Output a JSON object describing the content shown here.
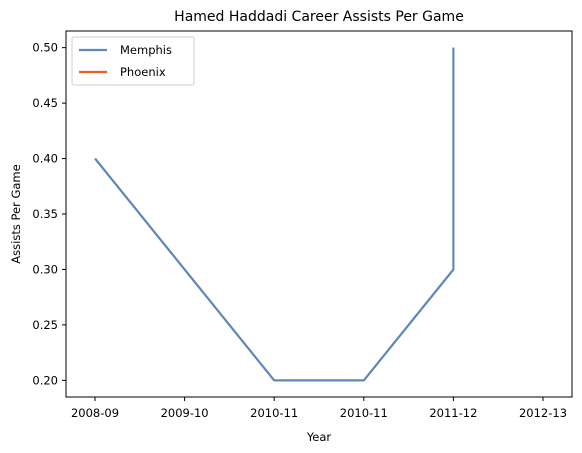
{
  "chart_data": {
    "type": "line",
    "title": "Hamed Haddadi Career Assists Per Game",
    "xlabel": "Year",
    "ylabel": "Assists Per Game",
    "categories": [
      "2008-09",
      "2009-10",
      "2010-11",
      "2010-11",
      "2011-12",
      "2012-13",
      "2012-13"
    ],
    "x_ticks": [
      "2008-09",
      "2009-10",
      "2010-11",
      "2010-11",
      "2011-12",
      "2012-13"
    ],
    "ylim": [
      0.185,
      0.515
    ],
    "y_ticks": [
      0.2,
      0.25,
      0.3,
      0.35,
      0.4,
      0.45,
      0.5
    ],
    "y_tick_labels": [
      "0.20",
      "0.25",
      "0.30",
      "0.35",
      "0.40",
      "0.45",
      "0.50"
    ],
    "grid": false,
    "legend_position": "top-left",
    "series": [
      {
        "name": "Memphis",
        "color": "#5f87b7",
        "points": [
          {
            "x": 0,
            "y": 0.4
          },
          {
            "x": 2,
            "y": 0.2
          },
          {
            "x": 3,
            "y": 0.2
          },
          {
            "x": 4,
            "y": 0.3
          },
          {
            "x": 4,
            "y": 0.5
          }
        ]
      },
      {
        "name": "Phoenix",
        "color": "#e0622a",
        "points": []
      }
    ]
  }
}
